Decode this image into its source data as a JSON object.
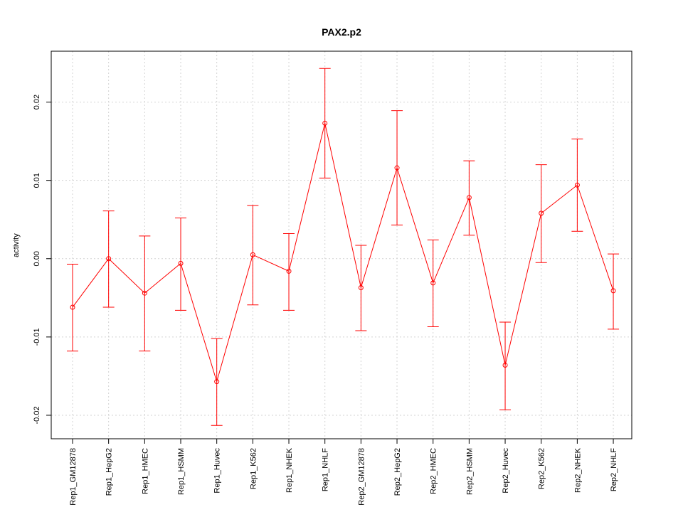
{
  "chart_data": {
    "type": "line",
    "title": "PAX2.p2",
    "xlabel": "",
    "ylabel": "activity",
    "ylim": [
      -0.023,
      0.0265
    ],
    "yticks": [
      -0.02,
      -0.01,
      0.0,
      0.01,
      0.02
    ],
    "ytick_labels": [
      "-0.02",
      "-0.01",
      "0.00",
      "0.01",
      "0.02"
    ],
    "grid": true,
    "color": "#ff0000",
    "grid_color": "#d3d3d3",
    "categories": [
      "Rep1_GM12878",
      "Rep1_HepG2",
      "Rep1_HMEC",
      "Rep1_HSMM",
      "Rep1_Huvec",
      "Rep1_K562",
      "Rep1_NHEK",
      "Rep1_NHLF",
      "Rep2_GM12878",
      "Rep2_HepG2",
      "Rep2_HMEC",
      "Rep2_HSMM",
      "Rep2_Huvec",
      "Rep2_K562",
      "Rep2_NHEK",
      "Rep2_NHLF"
    ],
    "series": [
      {
        "name": "activity",
        "values": [
          -0.0062,
          0.0,
          -0.0044,
          -0.0006,
          -0.0157,
          0.0005,
          -0.0016,
          0.0173,
          -0.0037,
          0.0116,
          -0.0031,
          0.0078,
          -0.0136,
          0.0058,
          0.0094,
          -0.0041
        ],
        "lower": [
          -0.0118,
          -0.0062,
          -0.0118,
          -0.0066,
          -0.0213,
          -0.0059,
          -0.0066,
          0.0103,
          -0.0092,
          0.0043,
          -0.0087,
          0.003,
          -0.0193,
          -0.0005,
          0.0035,
          -0.009
        ],
        "upper": [
          -0.0007,
          0.0061,
          0.0029,
          0.0052,
          -0.0102,
          0.0068,
          0.0032,
          0.0243,
          0.0017,
          0.0189,
          0.0024,
          0.0125,
          -0.0081,
          0.012,
          0.0153,
          0.0006
        ]
      }
    ]
  }
}
